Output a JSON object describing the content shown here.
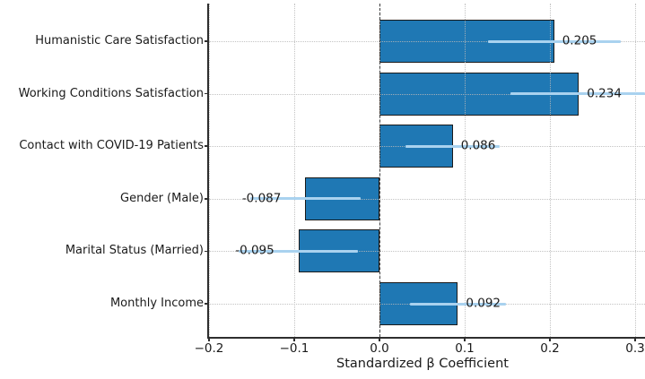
{
  "chart_data": {
    "type": "bar",
    "orientation": "horizontal",
    "title": "",
    "xlabel": "Standardized β Coefficient",
    "ylabel": "",
    "categories": [
      "Humanistic Care Satisfaction",
      "Working Conditions Satisfaction",
      "Contact with COVID-19 Patients",
      "Gender (Male)",
      "Marital Status (Married)",
      "Monthly Income"
    ],
    "values": [
      0.205,
      0.234,
      0.086,
      -0.087,
      -0.095,
      0.092
    ],
    "errors": [
      0.078,
      0.08,
      0.055,
      0.065,
      0.07,
      0.056
    ],
    "value_labels": [
      "0.205",
      "0.234",
      "0.086",
      "-0.087",
      "-0.095",
      "0.092"
    ],
    "x_ticks": [
      -0.2,
      -0.1,
      0.0,
      0.1,
      0.2,
      0.3
    ],
    "x_tick_labels": [
      "−0.2",
      "−0.1",
      "0.0",
      "0.1",
      "0.2",
      "0.3"
    ],
    "xlim": [
      -0.2,
      0.3116
    ],
    "grid": "dotted gray, horizontal at each category and vertical at each x tick",
    "legend": "none",
    "zero_line": "dashed dark vertical line at x = 0",
    "colors": {
      "bar_fill": "#1f78b4",
      "bar_edge": "#1a1a1a",
      "error_bar": "#a9d2ef",
      "grid": "#b9b9b9",
      "zero_line": "#3d3d3d",
      "spine": "#2e2e2e",
      "text": "#1a1a1a"
    }
  }
}
